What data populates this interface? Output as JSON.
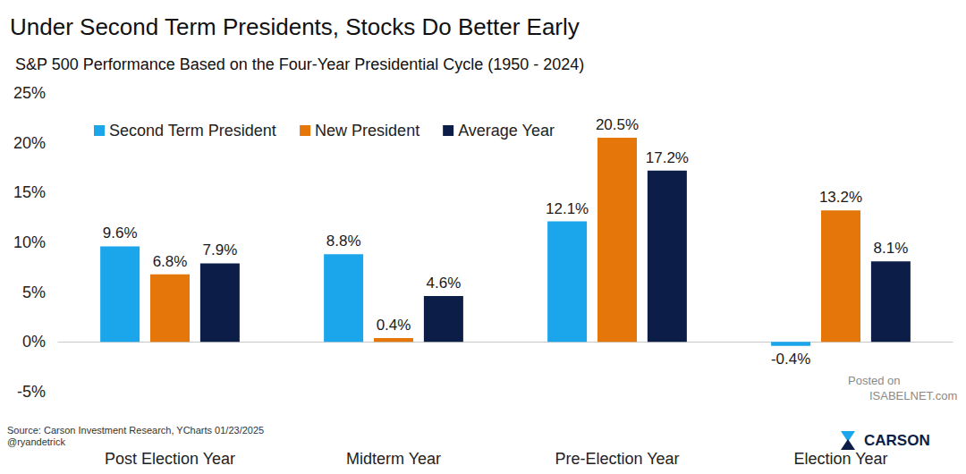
{
  "chart_data": {
    "type": "bar",
    "title": "Under Second Term Presidents, Stocks Do Better Early",
    "subtitle": "S&P 500 Performance Based on the Four-Year Presidential Cycle (1950 - 2024)",
    "categories": [
      "Post Election Year",
      "Midterm Year",
      "Pre-Election Year",
      "Election Year"
    ],
    "series": [
      {
        "name": "Second Term President",
        "color": "#1ba6ec",
        "values": [
          9.6,
          8.8,
          12.1,
          -0.4
        ],
        "value_labels": [
          "9.6%",
          "8.8%",
          "12.1%",
          "-0.4%"
        ]
      },
      {
        "name": "New President",
        "color": "#e5770a",
        "values": [
          6.8,
          0.4,
          20.5,
          13.2
        ],
        "value_labels": [
          "6.8%",
          "0.4%",
          "20.5%",
          "13.2%"
        ]
      },
      {
        "name": "Average Year",
        "color": "#0c1e47",
        "values": [
          7.9,
          4.6,
          17.2,
          8.1
        ],
        "value_labels": [
          "7.9%",
          "4.6%",
          "17.2%",
          "8.1%"
        ]
      }
    ],
    "ylim": [
      -5,
      25
    ],
    "yticks": [
      {
        "value": -5,
        "label": "-5%"
      },
      {
        "value": 0,
        "label": "0%"
      },
      {
        "value": 5,
        "label": "5%"
      },
      {
        "value": 10,
        "label": "10%"
      },
      {
        "value": 15,
        "label": "15%"
      },
      {
        "value": 20,
        "label": "20%"
      },
      {
        "value": 25,
        "label": "25%"
      }
    ],
    "grid": false,
    "legend": "top-left",
    "data_labels": true,
    "source": [
      "Source: Carson Investment Research, YCharts 01/23/2025",
      "@ryandetrick"
    ],
    "annotations": [
      "Posted on",
      "ISABELNET.com",
      "CARSON"
    ]
  }
}
